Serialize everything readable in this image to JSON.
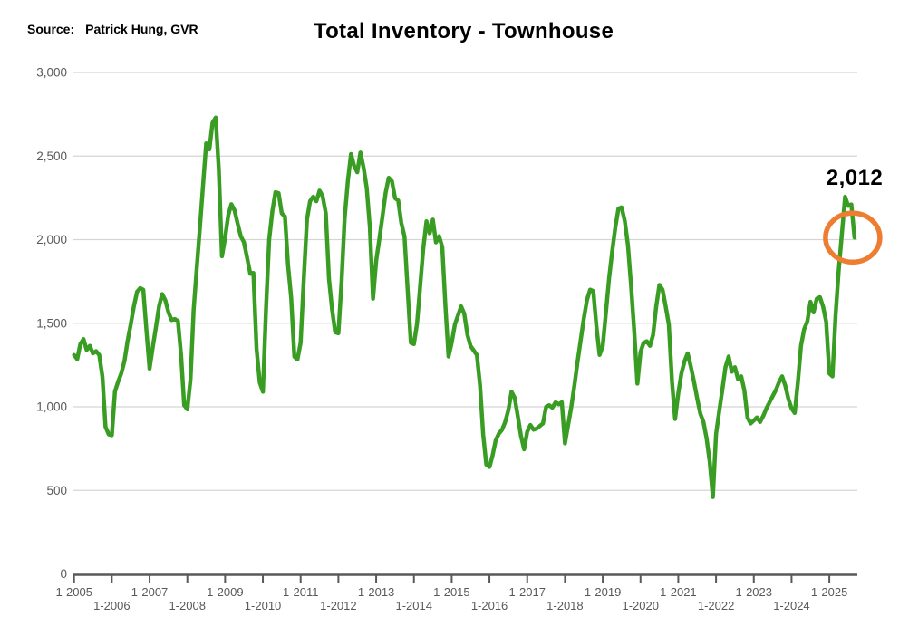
{
  "header": {
    "source_label": "Source:",
    "source_value": "Patrick Hung, GVR",
    "title": "Total Inventory - Townhouse"
  },
  "annotation": {
    "value_label": "2,012",
    "circle_color": "#ED7D31"
  },
  "chart_data": {
    "type": "line",
    "title": "Total Inventory - Townhouse",
    "frequency": "monthly",
    "x_start": "2005-01",
    "x_end": "2025-09",
    "ylim": [
      0,
      3000
    ],
    "grid": true,
    "legend": "none",
    "line_color": "#3A9D23",
    "grid_color": "#D5D5D5",
    "axis_color": "#595959",
    "axis_text_color": "#595959",
    "y_ticks": [
      {
        "value": 0,
        "label": "0"
      },
      {
        "value": 500,
        "label": "500"
      },
      {
        "value": 1000,
        "label": "1,000"
      },
      {
        "value": 1500,
        "label": "1,500"
      },
      {
        "value": 2000,
        "label": "2,000"
      },
      {
        "value": 2500,
        "label": "2,500"
      },
      {
        "value": 3000,
        "label": "3,000"
      }
    ],
    "x_tick_labels": [
      "1-2005",
      "1-2006",
      "1-2007",
      "1-2008",
      "1-2009",
      "1-2010",
      "1-2011",
      "1-2012",
      "1-2013",
      "1-2014",
      "1-2015",
      "1-2016",
      "1-2017",
      "1-2018",
      "1-2019",
      "1-2020",
      "1-2021",
      "1-2022",
      "1-2023",
      "1-2024",
      "1-2025"
    ],
    "highlighted_point": {
      "x": "2025-09",
      "value": 2012,
      "label": "2,012"
    },
    "values": [
      1310,
      1285,
      1375,
      1405,
      1340,
      1365,
      1320,
      1333,
      1310,
      1180,
      880,
      835,
      830,
      1091,
      1150,
      1200,
      1273,
      1392,
      1492,
      1601,
      1688,
      1710,
      1700,
      1455,
      1228,
      1355,
      1474,
      1601,
      1674,
      1638,
      1565,
      1519,
      1525,
      1514,
      1310,
      1009,
      985,
      1164,
      1583,
      1830,
      2075,
      2330,
      2576,
      2540,
      2700,
      2730,
      2420,
      1900,
      2011,
      2148,
      2212,
      2175,
      2093,
      2020,
      1984,
      1890,
      1795,
      1801,
      1346,
      1145,
      1090,
      1583,
      2000,
      2170,
      2284,
      2278,
      2157,
      2139,
      1850,
      1650,
      1300,
      1283,
      1383,
      1765,
      2120,
      2230,
      2257,
      2230,
      2293,
      2260,
      2157,
      1765,
      1583,
      1446,
      1440,
      1750,
      2129,
      2350,
      2512,
      2440,
      2403,
      2521,
      2430,
      2311,
      2075,
      1647,
      1874,
      2000,
      2139,
      2280,
      2370,
      2350,
      2248,
      2234,
      2100,
      2020,
      1700,
      1383,
      1375,
      1500,
      1729,
      1950,
      2110,
      2038,
      2120,
      1984,
      2020,
      1956,
      1601,
      1301,
      1383,
      1492,
      1546,
      1601,
      1556,
      1430,
      1364,
      1337,
      1310,
      1127,
      836,
      654,
      640,
      709,
      800,
      840,
      863,
      909,
      980,
      1090,
      1055,
      945,
      827,
      745,
      850,
      891,
      863,
      870,
      885,
      900,
      1000,
      1009,
      995,
      1027,
      1015,
      1027,
      781,
      891,
      1000,
      1127,
      1270,
      1401,
      1528,
      1640,
      1701,
      1692,
      1480,
      1310,
      1364,
      1565,
      1765,
      1929,
      2075,
      2186,
      2193,
      2111,
      1966,
      1729,
      1455,
      1139,
      1328,
      1383,
      1392,
      1365,
      1430,
      1601,
      1729,
      1700,
      1601,
      1492,
      1150,
      927,
      1080,
      1200,
      1273,
      1320,
      1240,
      1150,
      1050,
      960,
      909,
      809,
      672,
      460,
      836,
      973,
      1100,
      1237,
      1301,
      1210,
      1237,
      1164,
      1182,
      1100,
      936,
      900,
      918,
      936,
      909,
      945,
      991,
      1027,
      1064,
      1100,
      1146,
      1182,
      1127,
      1046,
      991,
      963,
      1146,
      1364,
      1464,
      1510,
      1628,
      1565,
      1646,
      1656,
      1600,
      1510,
      1200,
      1182,
      1546,
      1820,
      2038,
      2257,
      2202,
      2211,
      2012
    ]
  }
}
